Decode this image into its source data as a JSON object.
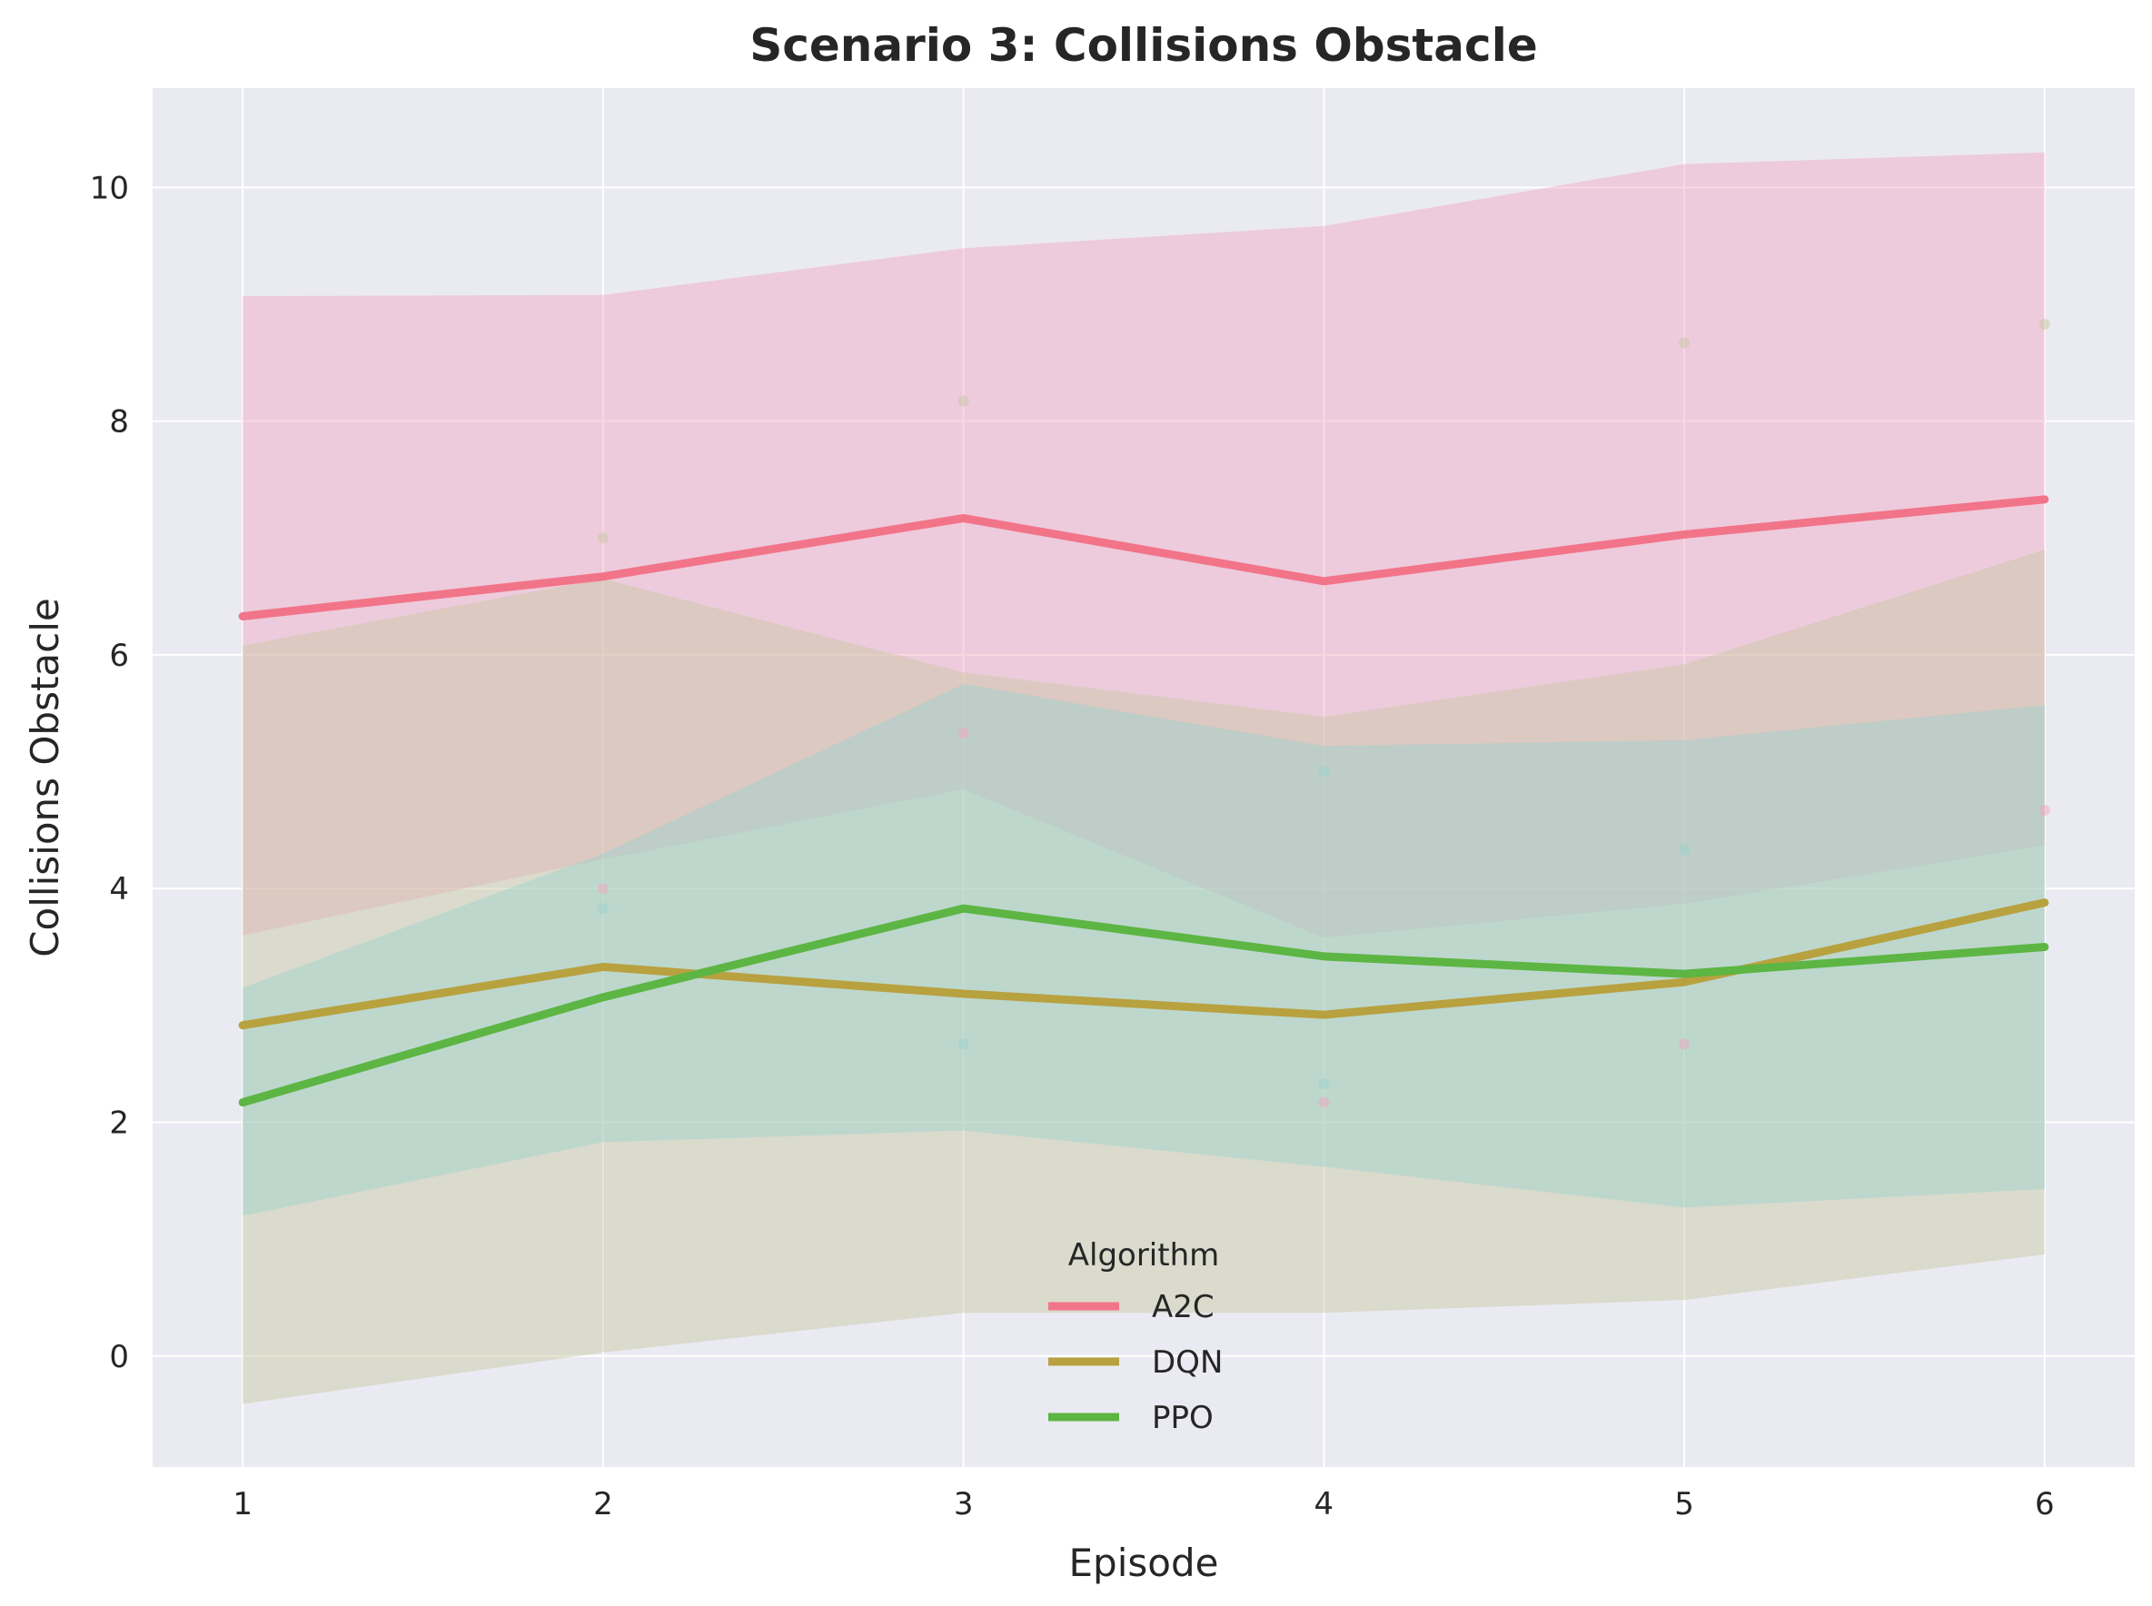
{
  "chart_data": {
    "type": "line",
    "title": "Scenario 3: Collisions Obstacle",
    "xlabel": "Episode",
    "ylabel": "Collisions Obstacle",
    "x": [
      1,
      2,
      3,
      4,
      5,
      6
    ],
    "xlim": [
      0.75,
      6.25
    ],
    "ylim": [
      -0.95,
      10.85
    ],
    "xticks": [
      "1",
      "2",
      "3",
      "4",
      "5",
      "6"
    ],
    "yticks": [
      "0",
      "2",
      "4",
      "6",
      "8",
      "10"
    ],
    "grid": true,
    "legend": {
      "title": "Algorithm",
      "placement": "lower center"
    },
    "series": [
      {
        "name": "A2C",
        "color": "#f27489",
        "fill_color": "#f2a6c0",
        "values": [
          6.33,
          6.67,
          7.17,
          6.63,
          7.03,
          7.33
        ],
        "band_lower": [
          3.6,
          4.25,
          4.85,
          3.58,
          3.87,
          4.37
        ],
        "band_upper": [
          9.07,
          9.08,
          9.48,
          9.67,
          10.2,
          10.3
        ],
        "points": [
          [
            2,
            4.0
          ],
          [
            3,
            5.33
          ],
          [
            4,
            2.17
          ],
          [
            5,
            2.67
          ],
          [
            6,
            4.67
          ]
        ]
      },
      {
        "name": "DQN",
        "color": "#b8a13f",
        "fill_color": "#c7c7a0",
        "values": [
          2.83,
          3.33,
          3.1,
          2.92,
          3.2,
          3.88
        ],
        "band_lower": [
          -0.41,
          0.03,
          0.37,
          0.37,
          0.48,
          0.87
        ],
        "band_upper": [
          6.08,
          6.65,
          5.85,
          5.47,
          5.92,
          6.9
        ],
        "points": [
          [
            2,
            7.0
          ],
          [
            3,
            8.17
          ],
          [
            5,
            8.67
          ],
          [
            6,
            8.83
          ]
        ]
      },
      {
        "name": "PPO",
        "color": "#5db543",
        "fill_color": "#99d2cf",
        "values": [
          2.17,
          3.07,
          3.83,
          3.42,
          3.27,
          3.5
        ],
        "band_lower": [
          1.2,
          1.83,
          1.93,
          1.62,
          1.27,
          1.43
        ],
        "band_upper": [
          3.15,
          4.3,
          5.75,
          5.22,
          5.27,
          5.57
        ],
        "points": [
          [
            2,
            3.83
          ],
          [
            3,
            2.67
          ],
          [
            4,
            5.0
          ],
          [
            4,
            2.33
          ],
          [
            5,
            4.33
          ]
        ]
      }
    ]
  }
}
